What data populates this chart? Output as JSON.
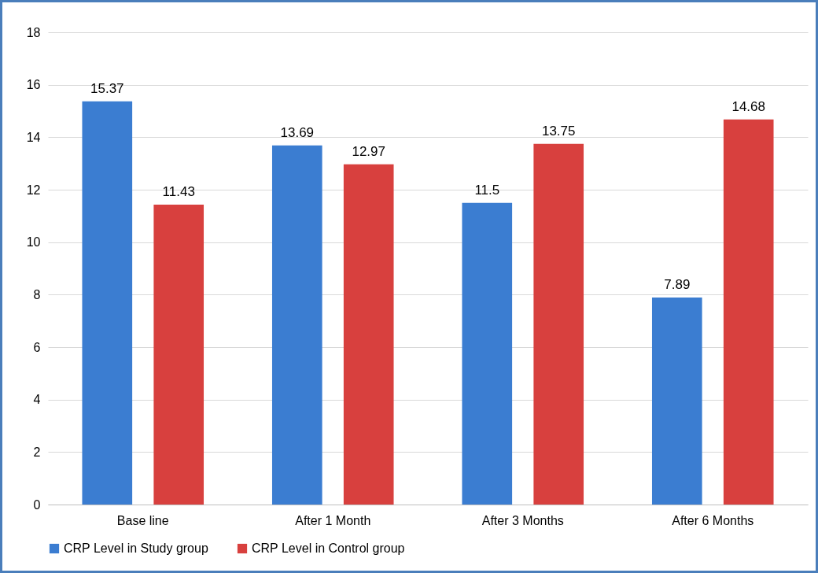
{
  "chart_data": {
    "type": "bar",
    "categories": [
      "Base line",
      "After 1 Month",
      "After 3 Months",
      "After 6 Months"
    ],
    "series": [
      {
        "name": "CRP Level  in Study group",
        "color": "#3b7dd1",
        "values": [
          15.37,
          13.69,
          11.5,
          7.89
        ]
      },
      {
        "name": "CRP Level  in Control group",
        "color": "#d8403e",
        "values": [
          11.43,
          12.97,
          13.75,
          14.68
        ]
      }
    ],
    "ylim": [
      0,
      18
    ],
    "yticks": [
      0,
      2,
      4,
      6,
      8,
      10,
      12,
      14,
      16,
      18
    ],
    "grid": "y",
    "legend": "bottom",
    "data_labels": true
  }
}
